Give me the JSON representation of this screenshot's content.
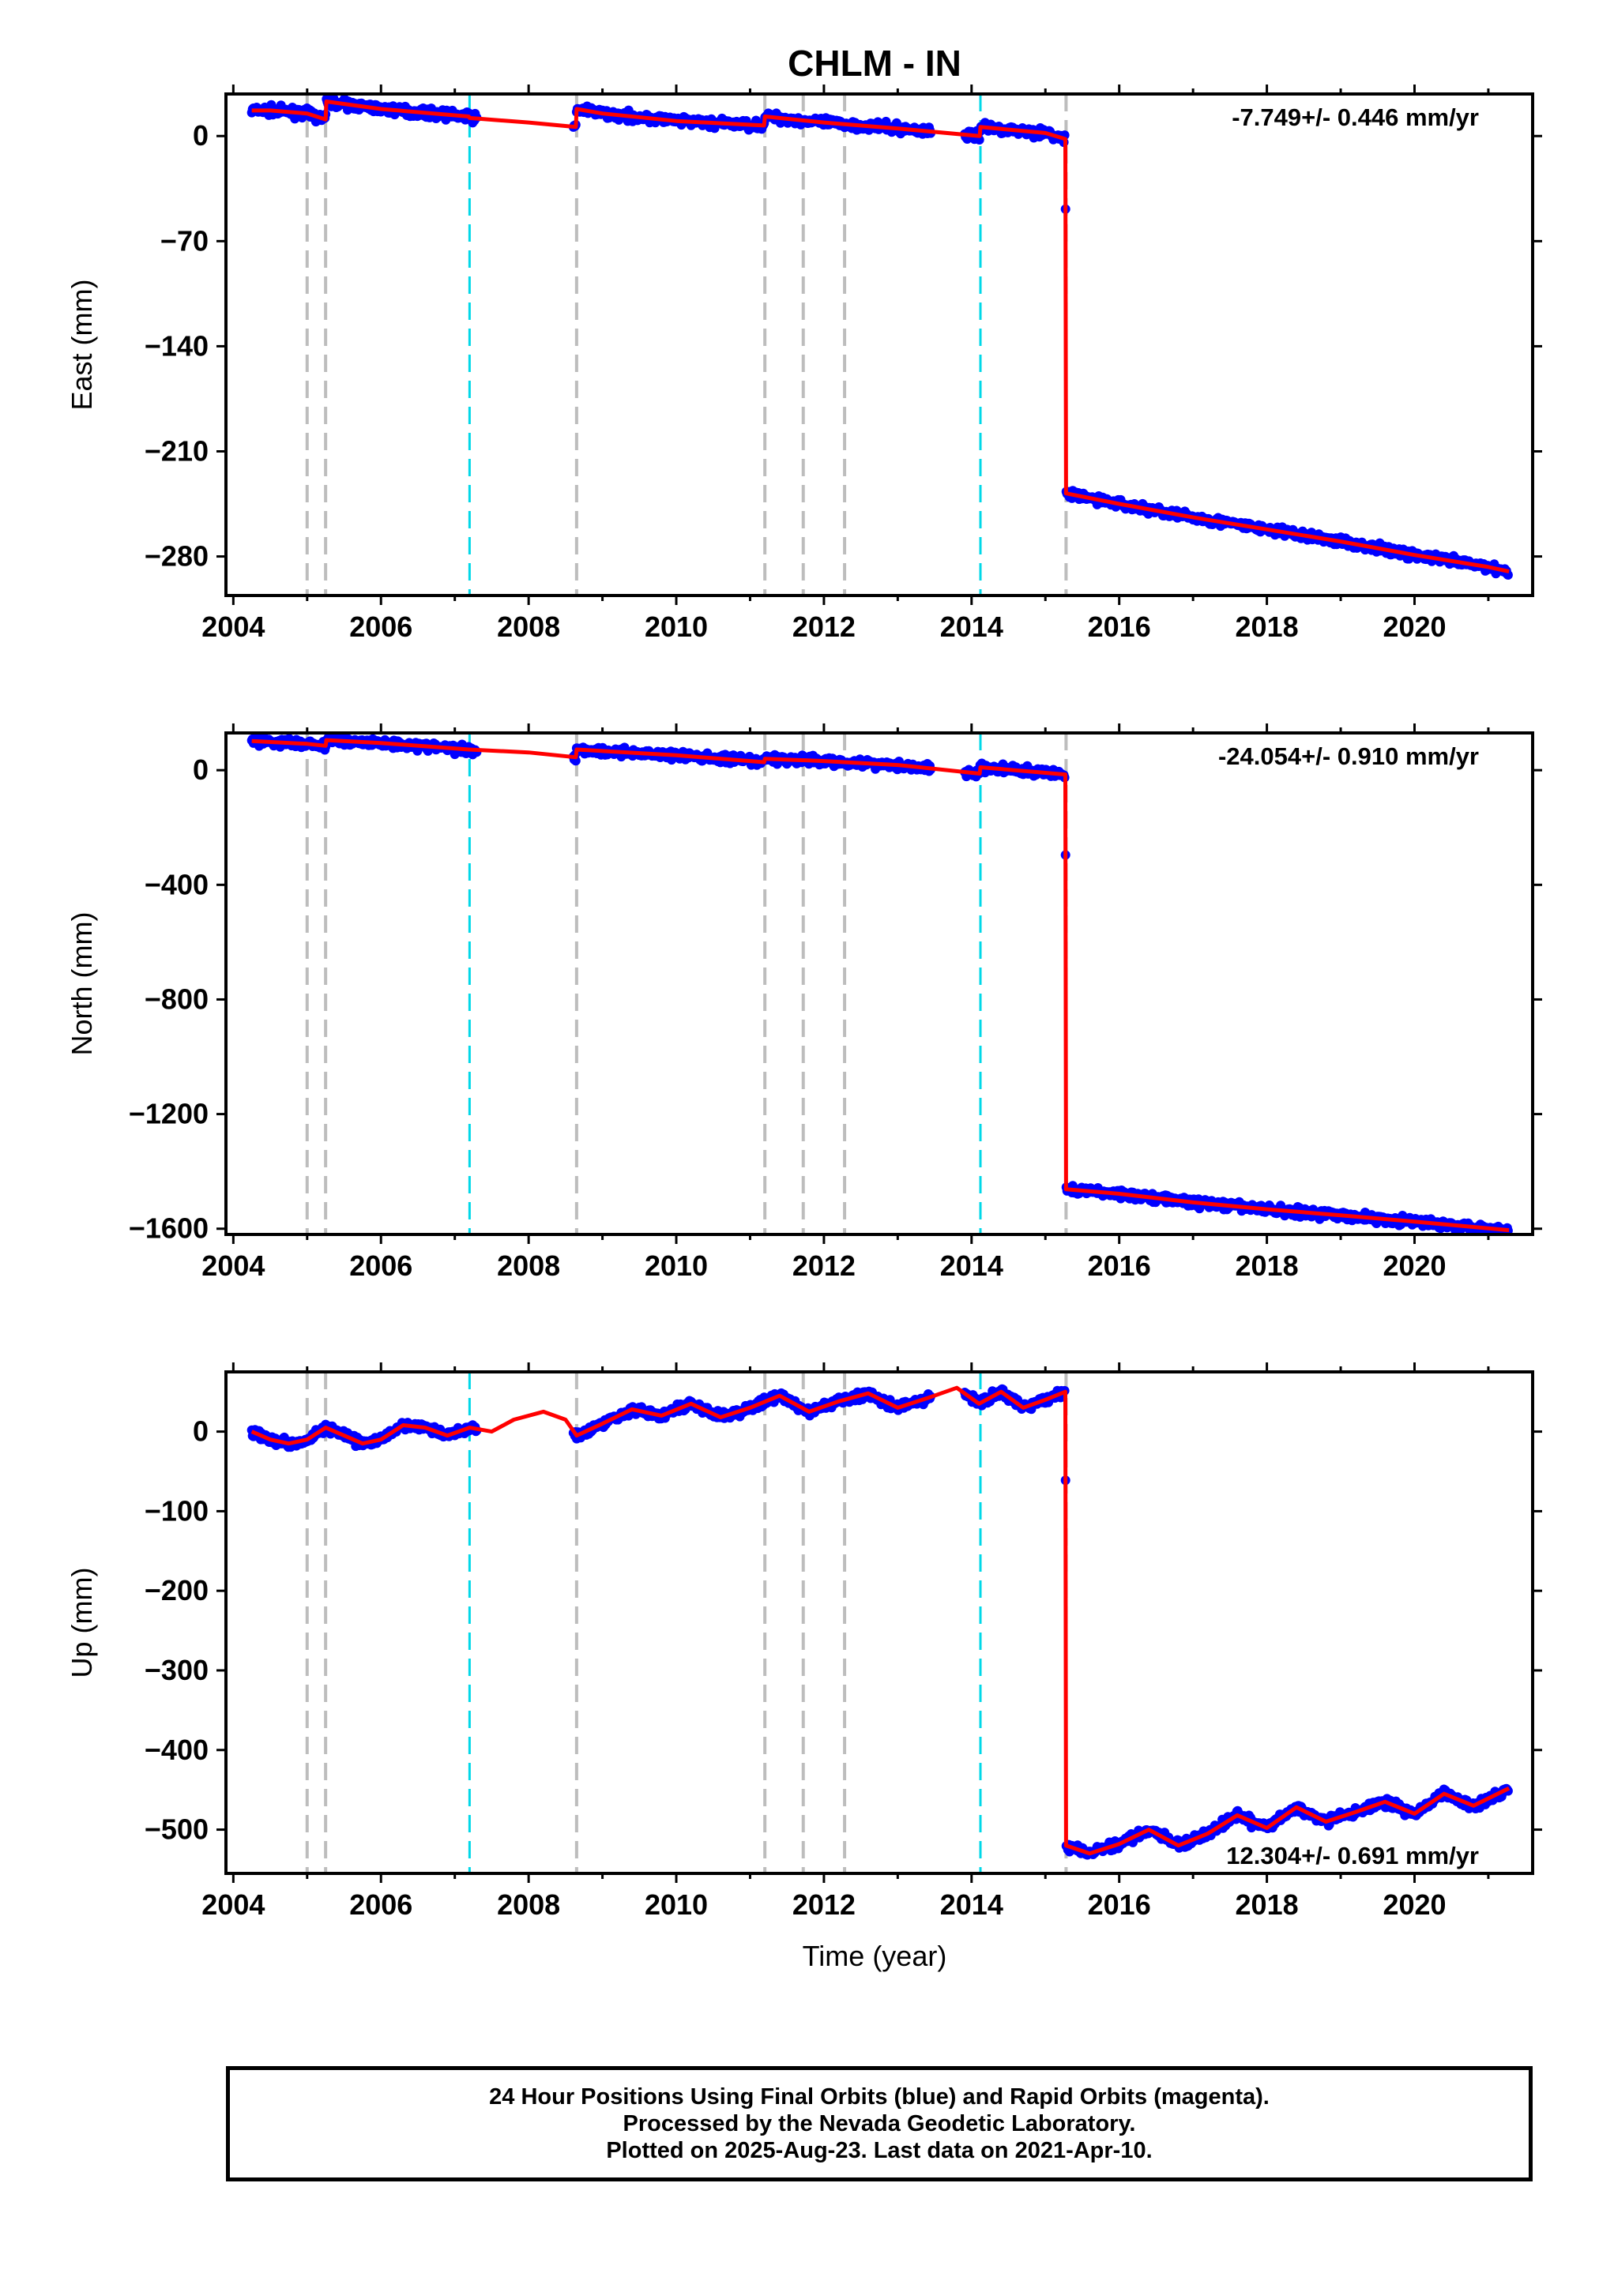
{
  "title": "CHLM - IN",
  "xlabel": "Time (year)",
  "x_ticks": [
    "2004",
    "2006",
    "2008",
    "2010",
    "2012",
    "2014",
    "2016",
    "2018",
    "2020"
  ],
  "colors": {
    "final_orbits": "#0000ff",
    "rapid_orbits": "#ff00ff",
    "model": "#ff0000",
    "gray_event": "#bdbdbd",
    "cyan_event": "#00d8e8"
  },
  "footer": {
    "line1": "24 Hour Positions Using Final Orbits (blue) and Rapid Orbits (magenta).",
    "line2": "Processed by the Nevada Geodetic Laboratory.",
    "line3": "Plotted on 2025-Aug-23. Last data on 2021-Apr-10."
  },
  "chart_data": [
    {
      "type": "scatter",
      "ylabel": "East (mm)",
      "rate_label": "-7.749+/- 0.446 mm/yr",
      "xlim": [
        2003.9,
        2021.6
      ],
      "ylim": [
        -306,
        28
      ],
      "yticks": [
        0,
        -70,
        -140,
        -210,
        -280
      ],
      "event_lines": {
        "gray": [
          2005.0,
          2005.25,
          2008.65,
          2011.2,
          2011.72,
          2012.28,
          2015.28
        ],
        "cyan": [
          2007.2,
          2014.12
        ]
      },
      "series": [
        {
          "points": [
            [
              2004.25,
              17
            ],
            [
              2004.5,
              17
            ],
            [
              2005.0,
              15
            ],
            [
              2005.25,
              11
            ],
            [
              2005.26,
              23
            ],
            [
              2006.0,
              18
            ],
            [
              2007.19,
              13
            ],
            [
              2007.2,
              12
            ],
            [
              2008.0,
              9
            ],
            [
              2008.64,
              6
            ],
            [
              2008.65,
              18
            ],
            [
              2009.0,
              15
            ],
            [
              2010.0,
              10
            ],
            [
              2011.19,
              7
            ],
            [
              2011.2,
              13
            ],
            [
              2012.0,
              9
            ],
            [
              2013.0,
              5
            ],
            [
              2014.11,
              0
            ],
            [
              2014.12,
              6
            ],
            [
              2015.0,
              2
            ],
            [
              2015.27,
              -2
            ],
            [
              2015.28,
              -238
            ],
            [
              2016.0,
              -245
            ],
            [
              2017.0,
              -254
            ],
            [
              2018.0,
              -262
            ],
            [
              2019.0,
              -270
            ],
            [
              2020.0,
              -279
            ],
            [
              2021.0,
              -287
            ],
            [
              2021.28,
              -290
            ]
          ]
        }
      ]
    },
    {
      "type": "scatter",
      "ylabel": "North (mm)",
      "rate_label": "-24.054+/- 0.910 mm/yr",
      "xlim": [
        2003.9,
        2021.6
      ],
      "ylim": [
        -1620,
        130
      ],
      "yticks": [
        0,
        -400,
        -800,
        -1200,
        -1600
      ],
      "event_lines": {
        "gray": [
          2005.0,
          2005.25,
          2008.65,
          2011.2,
          2011.72,
          2012.28,
          2015.28
        ],
        "cyan": [
          2007.2,
          2014.12
        ]
      },
      "series": [
        {
          "points": [
            [
              2004.25,
              102
            ],
            [
              2005.0,
              92
            ],
            [
              2005.25,
              85
            ],
            [
              2005.26,
              105
            ],
            [
              2006.0,
              95
            ],
            [
              2007.19,
              72
            ],
            [
              2008.0,
              62
            ],
            [
              2008.64,
              45
            ],
            [
              2008.65,
              72
            ],
            [
              2010.0,
              52
            ],
            [
              2011.19,
              28
            ],
            [
              2011.2,
              40
            ],
            [
              2012.0,
              32
            ],
            [
              2013.0,
              18
            ],
            [
              2014.11,
              -12
            ],
            [
              2014.12,
              10
            ],
            [
              2015.27,
              -15
            ],
            [
              2015.28,
              -1462
            ],
            [
              2016.0,
              -1478
            ],
            [
              2017.0,
              -1508
            ],
            [
              2018.0,
              -1532
            ],
            [
              2019.0,
              -1553
            ],
            [
              2020.0,
              -1575
            ],
            [
              2021.28,
              -1605
            ]
          ]
        }
      ]
    },
    {
      "type": "scatter",
      "ylabel": "Up (mm)",
      "rate_label": "12.304+/- 0.691 mm/yr",
      "xlim": [
        2003.9,
        2021.6
      ],
      "ylim": [
        -555,
        75
      ],
      "yticks": [
        0,
        -100,
        -200,
        -300,
        -400,
        -500
      ],
      "event_lines": {
        "gray": [
          2005.0,
          2005.25,
          2008.65,
          2011.2,
          2011.72,
          2012.28,
          2015.28
        ],
        "cyan": [
          2007.2,
          2014.12
        ]
      },
      "series": [
        {
          "points": [
            [
              2004.25,
              0
            ],
            [
              2004.5,
              -10
            ],
            [
              2004.75,
              -15
            ],
            [
              2005.0,
              -10
            ],
            [
              2005.25,
              5
            ],
            [
              2005.5,
              -5
            ],
            [
              2005.75,
              -15
            ],
            [
              2006.0,
              -10
            ],
            [
              2006.3,
              8
            ],
            [
              2006.6,
              5
            ],
            [
              2006.9,
              -5
            ],
            [
              2007.2,
              5
            ],
            [
              2007.5,
              0
            ],
            [
              2007.8,
              15
            ],
            [
              2008.2,
              25
            ],
            [
              2008.5,
              15
            ],
            [
              2008.65,
              -5
            ],
            [
              2009.0,
              10
            ],
            [
              2009.4,
              28
            ],
            [
              2009.8,
              20
            ],
            [
              2010.2,
              35
            ],
            [
              2010.6,
              18
            ],
            [
              2011.0,
              30
            ],
            [
              2011.4,
              45
            ],
            [
              2011.8,
              25
            ],
            [
              2012.2,
              38
            ],
            [
              2012.6,
              48
            ],
            [
              2013.0,
              30
            ],
            [
              2013.4,
              42
            ],
            [
              2013.8,
              55
            ],
            [
              2014.1,
              35
            ],
            [
              2014.4,
              50
            ],
            [
              2014.7,
              30
            ],
            [
              2015.0,
              40
            ],
            [
              2015.27,
              50
            ],
            [
              2015.28,
              -520
            ],
            [
              2015.6,
              -530
            ],
            [
              2016.0,
              -518
            ],
            [
              2016.4,
              -500
            ],
            [
              2016.8,
              -520
            ],
            [
              2017.2,
              -505
            ],
            [
              2017.6,
              -482
            ],
            [
              2018.0,
              -498
            ],
            [
              2018.4,
              -472
            ],
            [
              2018.8,
              -490
            ],
            [
              2019.2,
              -478
            ],
            [
              2019.6,
              -465
            ],
            [
              2020.0,
              -480
            ],
            [
              2020.4,
              -455
            ],
            [
              2020.8,
              -470
            ],
            [
              2021.28,
              -448
            ]
          ]
        }
      ]
    }
  ]
}
